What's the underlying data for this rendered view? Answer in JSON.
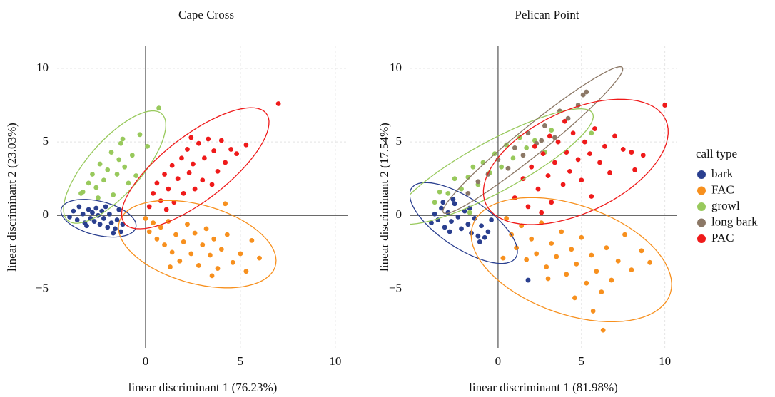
{
  "chart_data": [
    {
      "type": "scatter",
      "title": "Cape Cross",
      "xlabel": "linear discriminant 1 (76.23%)",
      "ylabel": "linear discriminant 2 (23.03%)",
      "xlim": [
        -4.66,
        10.68
      ],
      "ylim": [
        -9,
        11.5
      ],
      "xticks": [
        0,
        5,
        10
      ],
      "yticks": [
        {
          "value": -5,
          "label": "−5"
        },
        0,
        5,
        10
      ],
      "grid": true,
      "ellipses": true,
      "series": [
        {
          "name": "bark",
          "color": "#2a3f8f",
          "x": [
            -4,
            -3.8,
            -3.6,
            -3.5,
            -3.3,
            -3.2,
            -3,
            -2.9,
            -2.8,
            -2.7,
            -2.6,
            -2.5,
            -2.4,
            -2.3,
            -2.2,
            -2,
            -1.9,
            -1.8,
            -1.6,
            -1.5,
            -1.3,
            -1.2,
            -1.4,
            -2.1,
            -3.1,
            -1.7
          ],
          "y": [
            -0.1,
            0.3,
            -0.3,
            0.6,
            0.1,
            -0.5,
            0.4,
            -0.2,
            0.2,
            -0.4,
            0.5,
            0,
            -0.6,
            0.3,
            -0.2,
            -0.8,
            0.1,
            -0.5,
            -0.9,
            -0.3,
            -1.1,
            -0.6,
            0.4,
            0.6,
            -0.7,
            -1.2
          ]
        },
        {
          "name": "FAC",
          "color": "#f7901e",
          "x": [
            0,
            0.2,
            0.4,
            0.6,
            0.8,
            1,
            1.2,
            1.4,
            1.6,
            1.8,
            2,
            2.2,
            2.4,
            2.6,
            2.8,
            3,
            3.2,
            3.4,
            3.6,
            3.8,
            4,
            4.3,
            4.6,
            5,
            5.3,
            5.6,
            6,
            4.2,
            1.3,
            3.5
          ],
          "y": [
            -0.2,
            -1.1,
            -0.5,
            -1.6,
            -0.8,
            -2,
            -0.4,
            -2.5,
            -1.3,
            -3.1,
            -1.8,
            -0.6,
            -2.6,
            -1.2,
            -3.4,
            -2,
            -0.9,
            -2.7,
            -1.6,
            -3.6,
            -2.3,
            -1.3,
            -3.2,
            -2.6,
            -3.8,
            -1.7,
            -2.9,
            0.8,
            -3.5,
            -4.1
          ]
        },
        {
          "name": "growl",
          "color": "#98c95c",
          "x": [
            -3.4,
            -3.3,
            -3,
            -2.8,
            -2.6,
            -2.4,
            -2.2,
            -2,
            -1.8,
            -1.7,
            -1.5,
            -1.3,
            -1.2,
            -1.1,
            -0.9,
            -0.7,
            -0.5,
            -0.3,
            0.1,
            0.7,
            -2.5,
            -1.4
          ],
          "y": [
            1.5,
            1.6,
            2.2,
            2.8,
            1.9,
            3.5,
            2.4,
            3.1,
            4.3,
            1.4,
            2.8,
            4.9,
            5.2,
            3.3,
            2.2,
            4.1,
            2.7,
            5.5,
            4.7,
            7.3,
            1.2,
            3.8
          ]
        },
        {
          "name": "PAC",
          "color": "#ef1a1a",
          "x": [
            0.2,
            0.4,
            0.6,
            0.8,
            1,
            1.2,
            1.4,
            1.5,
            1.7,
            1.9,
            2,
            2.2,
            2.3,
            2.5,
            2.6,
            2.8,
            3,
            3.1,
            3.3,
            3.5,
            3.6,
            3.8,
            4,
            4.2,
            4.5,
            4.8,
            5.3,
            2.4,
            1.1,
            7
          ],
          "y": [
            0.6,
            1.5,
            2.2,
            1,
            2.8,
            1.8,
            3.4,
            0.9,
            2.5,
            3.9,
            1.5,
            4.5,
            2.9,
            3.5,
            1.8,
            4.9,
            2.4,
            3.9,
            5.2,
            2.1,
            4.4,
            3,
            5.1,
            3.6,
            4.5,
            4.2,
            4.8,
            5.3,
            0.4,
            7.6
          ]
        }
      ]
    },
    {
      "type": "scatter",
      "title": "Pelican Point",
      "xlabel": "linear discriminant 1 (81.98%)",
      "ylabel": "linear discriminant 2 (17.54%)",
      "xlim": [
        -5.26,
        10.7
      ],
      "ylim": [
        -9,
        11.5
      ],
      "xticks": [
        0,
        5,
        10
      ],
      "yticks": [
        {
          "value": -5,
          "label": "−5"
        },
        0,
        5,
        10
      ],
      "grid": true,
      "ellipses": true,
      "legend_title": "call type",
      "legend": "right",
      "series": [
        {
          "name": "bark",
          "color": "#2a3f8f",
          "x": [
            -4,
            -3.8,
            -3.6,
            -3.4,
            -3.2,
            -3,
            -2.8,
            -2.6,
            -2.4,
            -2.2,
            -2,
            -1.8,
            -1.6,
            -1.4,
            -1.2,
            -1,
            -0.8,
            -0.6,
            -0.4,
            -2.7,
            -1.7,
            -3.3,
            -1.1,
            -2.9,
            1.8
          ],
          "y": [
            -0.5,
            0.1,
            -0.3,
            0.5,
            -0.8,
            0.2,
            -0.4,
            0.8,
            -0.1,
            -0.9,
            0.3,
            -0.6,
            -1.2,
            -0.2,
            -1.4,
            -0.7,
            -1.5,
            -1.1,
            -0.3,
            1.1,
            0.5,
            0.9,
            -1.8,
            -1.1,
            -4.4
          ]
        },
        {
          "name": "FAC",
          "color": "#f7901e",
          "x": [
            0.5,
            0.8,
            1.1,
            1.4,
            1.7,
            2,
            2.3,
            2.6,
            2.9,
            3.2,
            3.5,
            3.8,
            4.1,
            4.4,
            4.7,
            5,
            5.3,
            5.6,
            5.9,
            6.2,
            6.5,
            6.8,
            7.2,
            7.6,
            8,
            8.6,
            9.1,
            6.3,
            5.7,
            4.6,
            3,
            0.3
          ],
          "y": [
            -0.2,
            -1.3,
            -2.2,
            -0.7,
            -3,
            -1.6,
            -2.6,
            -0.5,
            -3.5,
            -1.9,
            -2.8,
            -1.1,
            -4,
            -2.3,
            -3.3,
            -1.5,
            -4.6,
            -2.7,
            -3.8,
            -5.2,
            -2.2,
            -4.4,
            -3.1,
            -1.3,
            -3.7,
            -2.4,
            -3.2,
            -7.8,
            -6.5,
            -5.6,
            -4.3,
            -2.9
          ]
        },
        {
          "name": "growl",
          "color": "#98c95c",
          "x": [
            -3.8,
            -3.5,
            -3,
            -2.6,
            -2.2,
            -1.8,
            -1.5,
            -1.2,
            -0.9,
            -0.5,
            -0.2,
            0.2,
            0.5,
            0.9,
            1.3,
            1.7,
            2.2,
            2.8,
            3.2,
            5.6,
            -1.7
          ],
          "y": [
            0.9,
            1.6,
            1.5,
            2.5,
            1.8,
            2.6,
            3.3,
            2.1,
            3.6,
            2.9,
            4.2,
            3.3,
            4.8,
            3.9,
            5.3,
            4.6,
            5.1,
            4.3,
            5.8,
            5.6,
            0.2
          ]
        },
        {
          "name": "long bark",
          "color": "#8c7866",
          "x": [
            -1.8,
            -1.2,
            -0.6,
            0,
            0.6,
            1,
            1.5,
            1.8,
            2.3,
            2.8,
            3.4,
            3.7,
            4.2,
            4.8,
            5.3,
            5.1,
            2.6
          ],
          "y": [
            1.5,
            2.3,
            2.8,
            3.8,
            3.2,
            4.6,
            4.1,
            5.6,
            4.9,
            6.1,
            5.3,
            7.1,
            6.6,
            7.5,
            8.4,
            8.2,
            5.1
          ]
        },
        {
          "name": "PAC",
          "color": "#ef1a1a",
          "x": [
            1,
            1.5,
            1.8,
            2,
            2.4,
            2.7,
            3,
            3.2,
            3.4,
            3.6,
            3.9,
            4.1,
            4.3,
            4.5,
            4.8,
            5,
            5.2,
            5.5,
            5.8,
            6.1,
            6.4,
            6.7,
            7,
            7.5,
            8,
            8.2,
            8.7,
            4,
            3.1,
            2.2,
            5.6,
            2.6,
            10
          ],
          "y": [
            1.2,
            2.5,
            0.6,
            3.3,
            1.8,
            4.2,
            2.7,
            0.9,
            3.6,
            5,
            2.1,
            4.3,
            3,
            5.6,
            3.8,
            2.4,
            5,
            4.2,
            5.9,
            3.6,
            4.7,
            2.9,
            5.4,
            4.5,
            4.3,
            3.1,
            4.1,
            6.4,
            5.4,
            4.7,
            1.3,
            0.2,
            7.5
          ]
        }
      ]
    }
  ]
}
